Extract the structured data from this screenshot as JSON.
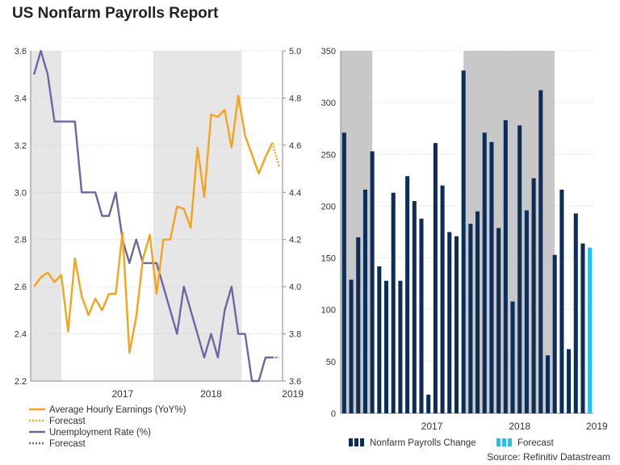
{
  "title": "US Nonfarm Payrolls Report",
  "source": "Source: Refinitiv Datastream",
  "colors": {
    "earnings": "#f7a21b",
    "unemployment": "#6b67a4",
    "payrolls": "#0b2d5a",
    "payrolls_forecast": "#1ec4f0",
    "shade": "#e6e6e6",
    "shade_dark": "#c8c8c8"
  },
  "chart_data": [
    {
      "type": "line",
      "left_axis": {
        "ylim": [
          2.2,
          3.6
        ],
        "ticks": [
          "2.2",
          "2.4",
          "2.6",
          "2.8",
          "3.0",
          "3.2",
          "3.4",
          "3.6"
        ]
      },
      "right_axis": {
        "ylim": [
          3.6,
          5.0
        ],
        "ticks": [
          "3.6",
          "3.8",
          "4.0",
          "4.2",
          "4.4",
          "4.6",
          "4.8",
          "5.0"
        ]
      },
      "x_tick_labels": [
        "2017",
        "2018",
        "2019"
      ],
      "x_tick_index": [
        13,
        26,
        38
      ],
      "shaded_ranges": [
        [
          0,
          4.5
        ],
        [
          18,
          31
        ]
      ],
      "legend": [
        {
          "label": "Average Hourly Earnings (YoY%)",
          "style": "solid",
          "color": "earnings"
        },
        {
          "label": "Forecast",
          "style": "dotted",
          "color": "earnings"
        },
        {
          "label": "Unemployment Rate (%)",
          "style": "solid",
          "color": "unemployment"
        },
        {
          "label": "Forecast",
          "style": "dotted",
          "color": "unemployment"
        }
      ],
      "series": [
        {
          "name": "Average Hourly Earnings (YoY%)",
          "axis": "left",
          "values": [
            2.6,
            2.64,
            2.66,
            2.62,
            2.65,
            2.41,
            2.72,
            2.56,
            2.48,
            2.55,
            2.5,
            2.57,
            2.57,
            2.83,
            2.32,
            2.47,
            2.72,
            2.82,
            2.57,
            2.8,
            2.8,
            2.94,
            2.93,
            2.85,
            3.19,
            2.98,
            3.33,
            3.32,
            3.35,
            3.19,
            3.41,
            3.24,
            3.16,
            3.08,
            3.15,
            3.21
          ],
          "forecast": [
            3.21,
            3.11
          ]
        },
        {
          "name": "Unemployment Rate (%)",
          "axis": "right",
          "values": [
            4.9,
            5.0,
            4.9,
            4.7,
            4.7,
            4.7,
            4.7,
            4.4,
            4.4,
            4.4,
            4.3,
            4.3,
            4.4,
            4.2,
            4.1,
            4.2,
            4.1,
            4.1,
            4.1,
            4.0,
            3.9,
            3.8,
            4.0,
            3.9,
            3.8,
            3.7,
            3.8,
            3.7,
            3.9,
            4.0,
            3.8,
            3.8,
            3.6,
            3.6,
            3.7,
            3.7
          ],
          "forecast": [
            3.7,
            3.7
          ]
        }
      ]
    },
    {
      "type": "bar",
      "ylim": [
        0,
        350
      ],
      "y_ticks": [
        "0",
        "50",
        "100",
        "150",
        "200",
        "250",
        "300",
        "350"
      ],
      "x_tick_labels": [
        "2017",
        "2018",
        "2019"
      ],
      "x_tick_index": [
        12.5,
        25,
        36
      ],
      "shaded_ranges": [
        [
          0,
          4.5
        ],
        [
          17.5,
          30.5
        ]
      ],
      "legend": [
        {
          "label": "Nonfarm Payrolls Change",
          "color": "payrolls"
        },
        {
          "label": "Forecast",
          "color": "payrolls_forecast"
        }
      ],
      "series": [
        {
          "name": "Nonfarm Payrolls Change",
          "values": [
            271,
            129,
            170,
            216,
            253,
            142,
            128,
            213,
            128,
            229,
            205,
            188,
            18,
            261,
            220,
            175,
            171,
            331,
            183,
            195,
            271,
            262,
            179,
            283,
            108,
            278,
            196,
            227,
            312,
            56,
            153,
            216,
            62,
            193,
            164
          ],
          "forecast": [
            160
          ]
        }
      ]
    }
  ]
}
